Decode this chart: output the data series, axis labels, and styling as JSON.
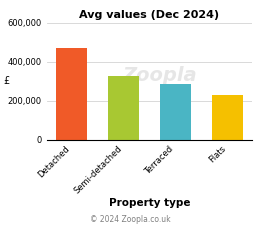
{
  "title": "Avg values (Dec 2024)",
  "categories": [
    "Detached",
    "Semi-detached",
    "Terraced",
    "Flats"
  ],
  "values": [
    470000,
    325000,
    285000,
    230000
  ],
  "bar_colors": [
    "#f05a28",
    "#a8c832",
    "#4ab5c4",
    "#f5c000"
  ],
  "ylabel": "£",
  "xlabel": "Property type",
  "ylim": [
    0,
    600000
  ],
  "yticks": [
    0,
    200000,
    400000,
    600000
  ],
  "copyright": "© 2024 Zoopla.co.uk",
  "watermark": "Zoopla",
  "background_color": "#ffffff",
  "title_fontsize": 8,
  "xlabel_fontsize": 7.5,
  "ylabel_fontsize": 7,
  "tick_fontsize": 6,
  "copyright_fontsize": 5.5
}
